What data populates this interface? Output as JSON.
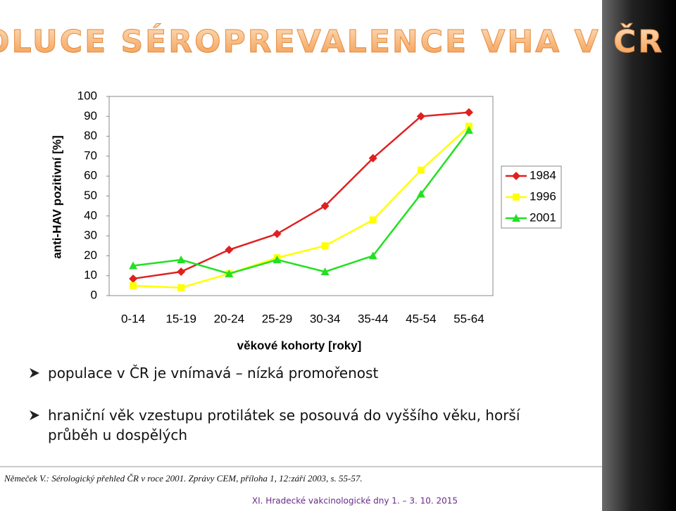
{
  "slide": {
    "title": "EVOLUCE SÉROPREVALENCE VHA V ČR",
    "bullets": [
      "populace v ČR je vnímavá – nízká promořenost",
      "hraniční věk vzestupu protilátek se posouvá do vyššího věku, horší průběh u dospělých"
    ],
    "citation": "Němeček V.: Sérologický přehled ČR v roce 2001. Zprávy CEM, příloha 1, 12:září 2003, s. 55-57.",
    "footer": "XI. Hradecké vakcinologické dny 1. – 3. 10. 2015"
  },
  "chart_data": {
    "type": "line",
    "x_label": "věkové kohorty [roky]",
    "y_label": "anti-HAV pozitivní [%]",
    "categories": [
      "0-14",
      "15-19",
      "20-24",
      "25-29",
      "30-34",
      "35-44",
      "45-54",
      "55-64"
    ],
    "series": [
      {
        "name": "1984",
        "color": "#e02020",
        "marker": "diamond",
        "values": [
          8.5,
          12,
          23,
          31,
          45,
          69,
          90,
          92
        ]
      },
      {
        "name": "1996",
        "color": "#ffff00",
        "marker": "square",
        "values": [
          5,
          4,
          11,
          19,
          25,
          38,
          63,
          85
        ]
      },
      {
        "name": "2001",
        "color": "#22e022",
        "marker": "triangle",
        "values": [
          15,
          18,
          11,
          18,
          12,
          20,
          51,
          83
        ]
      }
    ],
    "ylim": [
      0,
      100
    ],
    "yticks": [
      0,
      10,
      20,
      30,
      40,
      50,
      60,
      70,
      80,
      90,
      100
    ],
    "grid": false,
    "legend": "right"
  }
}
